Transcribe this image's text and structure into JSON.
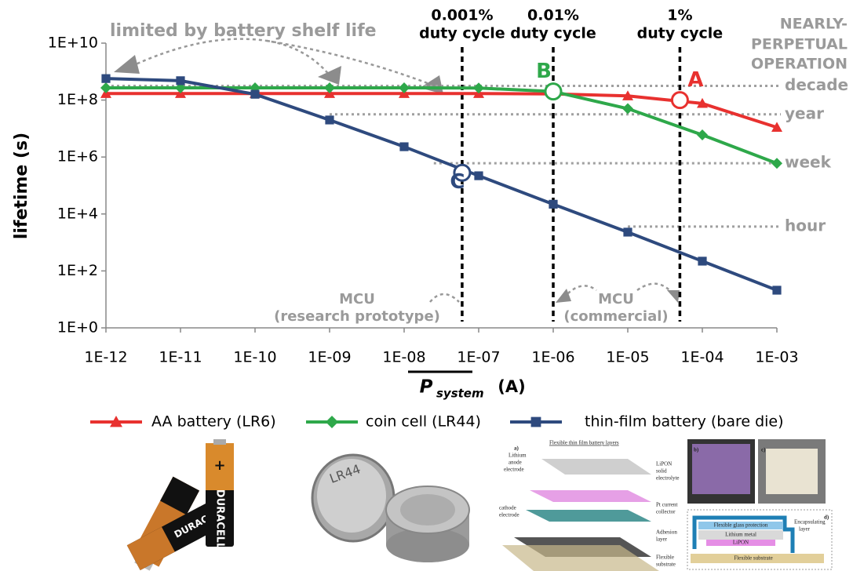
{
  "chart_data": {
    "type": "line",
    "x_label": "P",
    "x_label_subscript": "system",
    "x_label_unit": "(A)",
    "y_label": "lifetime (s)",
    "x_log": true,
    "y_log": true,
    "xlim": [
      1e-12,
      0.001
    ],
    "ylim": [
      1,
      10000000000.0
    ],
    "xticks": [
      {
        "value": 1e-12,
        "label": "1E-12"
      },
      {
        "value": 1e-11,
        "label": "1E-11"
      },
      {
        "value": 1e-10,
        "label": "1E-10"
      },
      {
        "value": 1e-09,
        "label": "1E-09"
      },
      {
        "value": 1e-08,
        "label": "1E-08"
      },
      {
        "value": 1e-07,
        "label": "1E-07"
      },
      {
        "value": 1e-06,
        "label": "1E-06"
      },
      {
        "value": 1e-05,
        "label": "1E-05"
      },
      {
        "value": 0.0001,
        "label": "1E-04"
      },
      {
        "value": 0.001,
        "label": "1E-03"
      }
    ],
    "yticks": [
      {
        "value": 1,
        "label": "1E+0"
      },
      {
        "value": 100,
        "label": "1E+2"
      },
      {
        "value": 10000,
        "label": "1E+4"
      },
      {
        "value": 1000000,
        "label": "1E+6"
      },
      {
        "value": 100000000,
        "label": "1E+8"
      },
      {
        "value": 10000000000,
        "label": "1E+10"
      }
    ],
    "x": [
      1e-12,
      1e-11,
      1e-10,
      1e-09,
      1e-08,
      1e-07,
      1e-06,
      1e-05,
      0.0001,
      0.001
    ],
    "series": [
      {
        "name": "AA battery (LR6)",
        "color": "#e8312f",
        "marker": "triangle",
        "values": [
          170000000,
          170000000,
          170000000,
          170000000,
          170000000,
          170000000,
          165000000,
          140000000,
          76000000,
          11000000
        ]
      },
      {
        "name": "coin cell (LR44)",
        "color": "#2ea84a",
        "marker": "diamond",
        "values": [
          270000000,
          270000000,
          270000000,
          270000000,
          270000000,
          265000000,
          200000000,
          50000000,
          6000000,
          600000
        ]
      },
      {
        "name": "thin-film battery (bare die)",
        "color": "#2e4a7e",
        "marker": "square",
        "values": [
          570000000,
          480000000,
          160000000,
          20000000,
          2300000,
          220000,
          22000,
          2300,
          220,
          21
        ]
      }
    ],
    "highlight_points": [
      {
        "label": "A",
        "x": 5e-05,
        "y": 100000000,
        "color": "#e8312f"
      },
      {
        "label": "B",
        "x": 1e-06,
        "y": 200000000,
        "color": "#2ea84a"
      },
      {
        "label": "C",
        "x": 6e-08,
        "y": 280000,
        "color": "#2e4a7e"
      }
    ],
    "reference_lines": [
      {
        "label": "decade",
        "value": 315000000,
        "x_from": 1e-12
      },
      {
        "label": "year",
        "value": 31500000,
        "x_from": 1e-09
      },
      {
        "label": "week",
        "value": 605000,
        "x_from": 2.5e-08
      },
      {
        "label": "hour",
        "value": 3600,
        "x_from": 1e-05
      }
    ],
    "duty_cycles": [
      {
        "percent": "0.001%",
        "text": "duty cycle",
        "x": 6e-08
      },
      {
        "percent": "0.01%",
        "text": "duty cycle",
        "x": 1e-06
      },
      {
        "percent": "1%",
        "text": "duty cycle",
        "x": 5e-05
      }
    ],
    "annotations": {
      "shelf_life": "limited by battery shelf life",
      "perpetual": [
        "NEARLY-",
        "PERPETUAL",
        "OPERATION"
      ],
      "mcu_research": [
        "MCU",
        "(research prototype)"
      ],
      "mcu_commercial": [
        "MCU",
        "(commercial)"
      ]
    },
    "legend": "bottom"
  },
  "figure_images": {
    "aa_brand": "DURACELL",
    "coin_label": "LR44",
    "panel_a": "a)",
    "panel_a_title": "Flexible thin film battery layers",
    "layers": [
      "Lithium",
      "anode",
      "electrode",
      "LiPON",
      "solid",
      "electrolyte",
      "cathode",
      "electrode",
      "Pt current",
      "collector",
      "Adhesion",
      "layer",
      "Flexible",
      "substrate"
    ],
    "panel_b": "b)",
    "panel_c": "c)",
    "panel_d": "d)",
    "d_layers": [
      "Flexible glass protection",
      "Lithium metal",
      "LiPON",
      "Flexible substrate",
      "Encapsulating",
      "layer"
    ]
  }
}
